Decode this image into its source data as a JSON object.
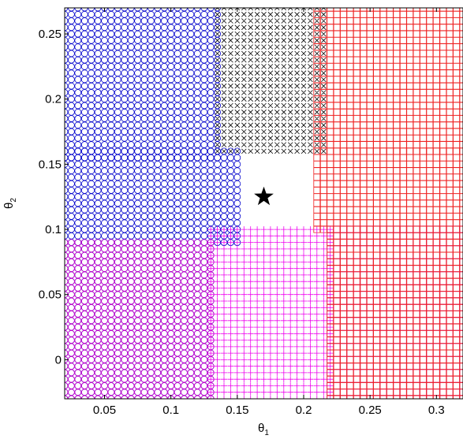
{
  "chart_data": {
    "type": "scatter",
    "title": "",
    "xlabel": "θ",
    "xlabel_sub": "1",
    "ylabel": "θ",
    "ylabel_sub": "2",
    "xlim": [
      0.02,
      0.32
    ],
    "ylim": [
      -0.03,
      0.27
    ],
    "x_ticks": [
      {
        "value": 0.05,
        "label": "0.05"
      },
      {
        "value": 0.1,
        "label": "0.1"
      },
      {
        "value": 0.15,
        "label": "0.15"
      },
      {
        "value": 0.2,
        "label": "0.2"
      },
      {
        "value": 0.25,
        "label": "0.25"
      },
      {
        "value": 0.3,
        "label": "0.3"
      }
    ],
    "y_ticks": [
      {
        "value": 0,
        "label": "0"
      },
      {
        "value": 0.05,
        "label": "0.05"
      },
      {
        "value": 0.1,
        "label": "0.1"
      },
      {
        "value": 0.15,
        "label": "0.15"
      },
      {
        "value": 0.2,
        "label": "0.2"
      },
      {
        "value": 0.25,
        "label": "0.25"
      }
    ],
    "grid": false,
    "marker_spacing": 0.005,
    "star": {
      "x": 0.17,
      "y": 0.125,
      "marker": "pentagram",
      "color": "#000000"
    },
    "regions": [
      {
        "marker": "circle",
        "color": "#0000cc",
        "x_range": [
          0.02,
          0.135
        ],
        "y_range": [
          0.155,
          0.27
        ]
      },
      {
        "marker": "x",
        "color": "#000000",
        "x_range": [
          0.135,
          0.215
        ],
        "y_range": [
          0.16,
          0.27
        ]
      },
      {
        "marker": "square",
        "color": "#ee2222",
        "x_range": [
          0.21,
          0.32
        ],
        "y_range": [
          0.16,
          0.27
        ]
      },
      {
        "marker": "circle",
        "color": "#0000cc",
        "x_range": [
          0.02,
          0.15
        ],
        "y_range": [
          0.09,
          0.16
        ]
      },
      {
        "marker": "square",
        "color": "#ee2222",
        "x_range": [
          0.21,
          0.32
        ],
        "y_range": [
          0.1,
          0.16
        ]
      },
      {
        "marker": "circle",
        "color": "#0000cc",
        "x_range": [
          0.02,
          0.13
        ],
        "y_range": [
          -0.03,
          0.09
        ]
      },
      {
        "marker": "circle",
        "color": "#cc00cc",
        "x_range": [
          0.02,
          0.13
        ],
        "y_range": [
          -0.03,
          0.09
        ]
      },
      {
        "marker": "plus",
        "color": "#ee00ee",
        "x_range": [
          0.13,
          0.22
        ],
        "y_range": [
          -0.03,
          0.1
        ]
      },
      {
        "marker": "square",
        "color": "#cc00cc",
        "x_range": [
          0.22,
          0.32
        ],
        "y_range": [
          -0.03,
          0.1
        ]
      },
      {
        "marker": "square",
        "color": "#ee2222",
        "x_range": [
          0.22,
          0.32
        ],
        "y_range": [
          -0.03,
          0.1
        ]
      }
    ]
  }
}
